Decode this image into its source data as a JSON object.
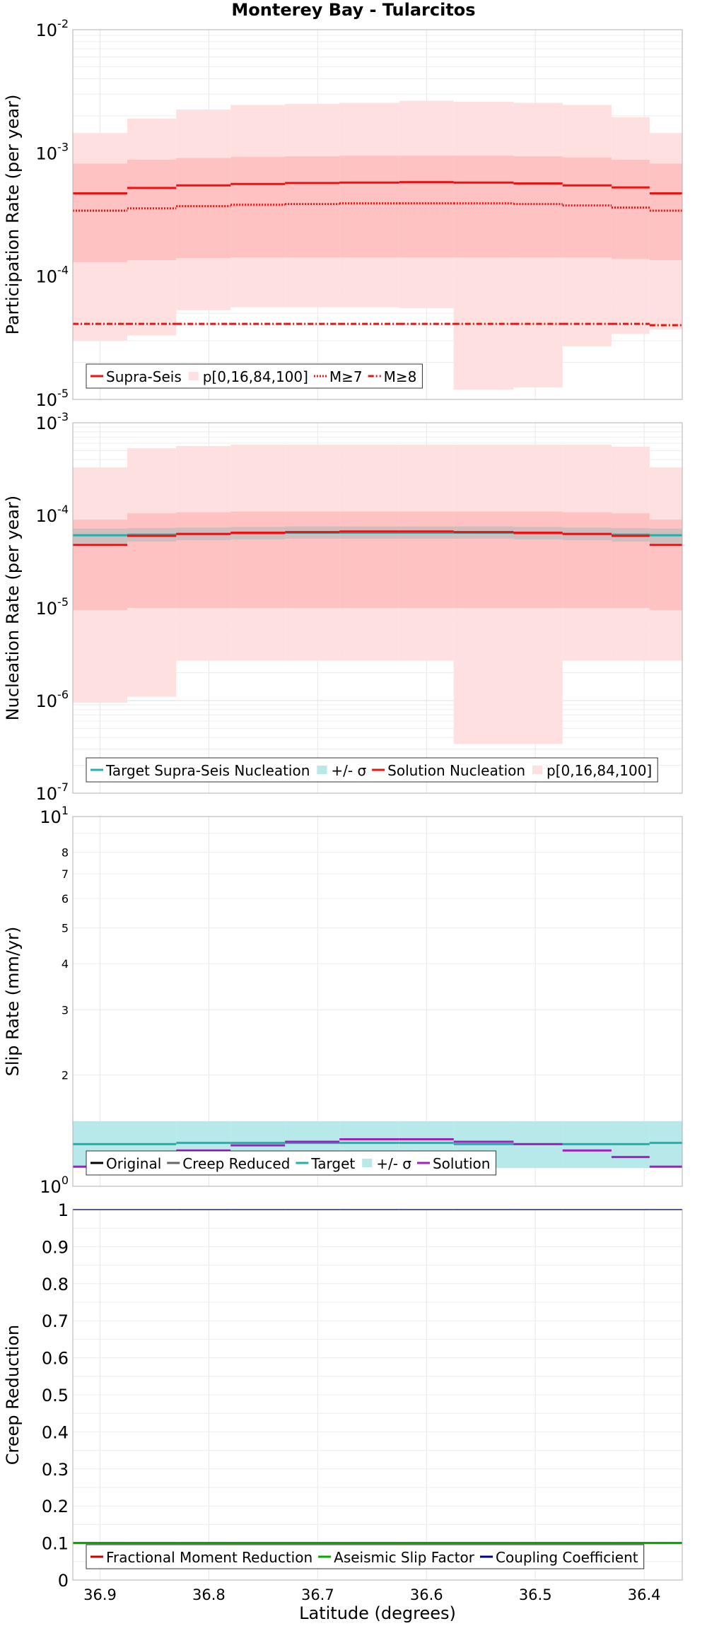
{
  "title": "Monterey Bay - Tularcitos",
  "xlabel": "Latitude (degrees)",
  "x_ticks": [
    36.9,
    36.8,
    36.7,
    36.6,
    36.5,
    36.4
  ],
  "x_tick_labels": [
    "36.9",
    "36.8",
    "36.7",
    "36.6",
    "36.5",
    "36.4"
  ],
  "x_range": [
    36.925,
    36.365
  ],
  "grid": true,
  "segment_edges": [
    36.925,
    36.875,
    36.83,
    36.78,
    36.73,
    36.68,
    36.625,
    36.575,
    36.52,
    36.475,
    36.43,
    36.395,
    36.365
  ],
  "colors": {
    "supra": "#ee1111",
    "band_inner": "#ffc2c2",
    "band_outer": "#ffe0e0",
    "target": "#20b2aa",
    "sigma": "#b7e8ea",
    "creep_reduced": "#666666",
    "original": "#000000",
    "solution_slip": "#a020c0",
    "aseismic": "#00aa00",
    "coupling": "#000080",
    "fractional": "#cc0000"
  },
  "chart_data": [
    {
      "type": "line",
      "ylabel": "Participation Rate (per year)",
      "yscale": "log",
      "ylim": [
        1e-05,
        0.01
      ],
      "y_tick_labels": [
        {
          "value": 1e-05,
          "base": "10",
          "exp": "-5"
        },
        {
          "value": 0.0001,
          "base": "10",
          "exp": "-4"
        },
        {
          "value": 0.001,
          "base": "10",
          "exp": "-3"
        },
        {
          "value": 0.01,
          "base": "10",
          "exp": "-2"
        }
      ],
      "legend": [
        "Supra-Seis",
        "p[0,16,84,100]",
        "M≥7",
        "M≥8"
      ],
      "legend_position": "bottom-left",
      "bands": [
        {
          "name": "p[0,100]",
          "low": [
            3e-05,
            3.3e-05,
            5.3e-05,
            5.6e-05,
            5.6e-05,
            5.6e-05,
            5.5e-05,
            1.2e-05,
            1.25e-05,
            2.7e-05,
            3.4e-05,
            3.7e-05
          ],
          "high": [
            0.00145,
            0.0019,
            0.00225,
            0.00245,
            0.0025,
            0.00255,
            0.00265,
            0.0026,
            0.00255,
            0.00245,
            0.00195,
            0.00145
          ]
        },
        {
          "name": "p[16,84]",
          "low": [
            0.00013,
            0.000135,
            0.00014,
            0.000142,
            0.000142,
            0.000142,
            0.000142,
            0.000142,
            0.000142,
            0.000142,
            0.000138,
            0.000135
          ],
          "high": [
            0.00082,
            0.00088,
            0.00091,
            0.00093,
            0.00094,
            0.00095,
            0.00095,
            0.00095,
            0.00094,
            0.00092,
            0.00088,
            0.00082
          ]
        }
      ],
      "series": [
        {
          "name": "Supra-Seis",
          "style": "solid",
          "values": [
            0.00047,
            0.00052,
            0.000545,
            0.00056,
            0.00057,
            0.000575,
            0.00058,
            0.000575,
            0.000565,
            0.000545,
            0.000525,
            0.00047
          ]
        },
        {
          "name": "M≥7",
          "style": "dotted",
          "values": [
            0.00034,
            0.000355,
            0.00037,
            0.00038,
            0.000385,
            0.00039,
            0.00039,
            0.00039,
            0.000385,
            0.000375,
            0.00036,
            0.00034
          ]
        },
        {
          "name": "M≥8",
          "style": "dashdot",
          "values": [
            4.1e-05,
            4.1e-05,
            4.1e-05,
            4.1e-05,
            4.1e-05,
            4.1e-05,
            4.1e-05,
            4.1e-05,
            4.1e-05,
            4.1e-05,
            4.1e-05,
            4e-05
          ]
        }
      ]
    },
    {
      "type": "line",
      "ylabel": "Nucleation Rate (per year)",
      "yscale": "log",
      "ylim": [
        1e-07,
        0.001
      ],
      "y_tick_labels": [
        {
          "value": 1e-07,
          "base": "10",
          "exp": "-7"
        },
        {
          "value": 1e-06,
          "base": "10",
          "exp": "-6"
        },
        {
          "value": 1e-05,
          "base": "10",
          "exp": "-5"
        },
        {
          "value": 0.0001,
          "base": "10",
          "exp": "-4"
        },
        {
          "value": 0.001,
          "base": "10",
          "exp": "-3"
        }
      ],
      "legend": [
        "Target Supra-Seis Nucleation",
        "+/- σ",
        "Solution Nucleation",
        "p[0,16,84,100]"
      ],
      "legend_position": "bottom-left",
      "bands": [
        {
          "name": "p[0,100]",
          "low": [
            9.5e-07,
            1.1e-06,
            2.7e-06,
            2.7e-06,
            2.7e-06,
            2.7e-06,
            2.7e-06,
            3.4e-07,
            3.4e-07,
            2.7e-06,
            2.7e-06,
            2.7e-06
          ],
          "high": [
            0.00033,
            0.00053,
            0.00056,
            0.00058,
            0.00058,
            0.00058,
            0.00058,
            0.00058,
            0.00058,
            0.00058,
            0.00055,
            0.00033
          ]
        },
        {
          "name": "p[16,84]",
          "low": [
            9.5e-06,
            1e-05,
            1e-05,
            1e-05,
            1e-05,
            1e-05,
            1e-05,
            1e-05,
            1e-05,
            1e-05,
            1e-05,
            9.5e-06
          ],
          "high": [
            9e-05,
            0.000105,
            0.000108,
            0.00011,
            0.00011,
            0.00011,
            0.00011,
            0.00011,
            0.00011,
            0.000108,
            0.000105,
            9e-05
          ]
        },
        {
          "name": "+/- σ",
          "low": [
            5e-05,
            5.2e-05,
            5.4e-05,
            5.5e-05,
            5.6e-05,
            5.6e-05,
            5.6e-05,
            5.6e-05,
            5.5e-05,
            5.4e-05,
            5.2e-05,
            5e-05
          ],
          "high": [
            7.2e-05,
            7.3e-05,
            7.4e-05,
            7.5e-05,
            7.6e-05,
            7.6e-05,
            7.6e-05,
            7.6e-05,
            7.5e-05,
            7.4e-05,
            7.3e-05,
            7.2e-05
          ]
        }
      ],
      "series": [
        {
          "name": "Target Supra-Seis Nucleation",
          "style": "solid",
          "values": [
            6.1e-05,
            6.2e-05,
            6.3e-05,
            6.4e-05,
            6.5e-05,
            6.5e-05,
            6.5e-05,
            6.5e-05,
            6.4e-05,
            6.3e-05,
            6.2e-05,
            6.1e-05
          ]
        },
        {
          "name": "Solution Nucleation",
          "style": "solid",
          "values": [
            4.8e-05,
            6e-05,
            6.3e-05,
            6.5e-05,
            6.6e-05,
            6.7e-05,
            6.7e-05,
            6.6e-05,
            6.5e-05,
            6.3e-05,
            6e-05,
            4.8e-05
          ]
        }
      ]
    },
    {
      "type": "line",
      "ylabel": "Slip Rate (mm/yr)",
      "yscale": "log",
      "ylim": [
        1,
        10
      ],
      "y_tick_labels": [
        {
          "value": 1,
          "base": "10",
          "exp": "0"
        },
        {
          "value": 2,
          "base": "2",
          "exp": ""
        },
        {
          "value": 3,
          "base": "3",
          "exp": ""
        },
        {
          "value": 4,
          "base": "4",
          "exp": ""
        },
        {
          "value": 5,
          "base": "5",
          "exp": ""
        },
        {
          "value": 6,
          "base": "6",
          "exp": ""
        },
        {
          "value": 7,
          "base": "7",
          "exp": ""
        },
        {
          "value": 8,
          "base": "8",
          "exp": ""
        },
        {
          "value": 10,
          "base": "10",
          "exp": "1"
        }
      ],
      "legend": [
        "Original",
        "Creep Reduced",
        "Target",
        "+/- σ",
        "Solution"
      ],
      "legend_position": "bottom-left",
      "bands": [
        {
          "name": "+/- σ",
          "low": [
            1.12,
            1.12,
            1.12,
            1.12,
            1.12,
            1.12,
            1.12,
            1.12,
            1.12,
            1.12,
            1.12,
            1.12
          ],
          "high": [
            1.5,
            1.5,
            1.5,
            1.5,
            1.5,
            1.5,
            1.5,
            1.5,
            1.5,
            1.5,
            1.5,
            1.5
          ]
        }
      ],
      "series": [
        {
          "name": "Target",
          "style": "solid",
          "values": [
            1.3,
            1.3,
            1.31,
            1.31,
            1.31,
            1.31,
            1.31,
            1.3,
            1.3,
            1.3,
            1.3,
            1.31
          ]
        },
        {
          "name": "Solution",
          "style": "solid",
          "values": [
            1.13,
            1.19,
            1.25,
            1.29,
            1.32,
            1.34,
            1.34,
            1.32,
            1.3,
            1.25,
            1.2,
            1.13
          ]
        }
      ]
    },
    {
      "type": "line",
      "ylabel": "Creep Reduction",
      "yscale": "linear",
      "ylim": [
        0,
        1
      ],
      "y_tick_labels": [
        {
          "value": 0,
          "base": "0",
          "exp": ""
        },
        {
          "value": 0.1,
          "base": "0.1",
          "exp": ""
        },
        {
          "value": 0.2,
          "base": "0.2",
          "exp": ""
        },
        {
          "value": 0.3,
          "base": "0.3",
          "exp": ""
        },
        {
          "value": 0.4,
          "base": "0.4",
          "exp": ""
        },
        {
          "value": 0.5,
          "base": "0.5",
          "exp": ""
        },
        {
          "value": 0.6,
          "base": "0.6",
          "exp": ""
        },
        {
          "value": 0.7,
          "base": "0.7",
          "exp": ""
        },
        {
          "value": 0.8,
          "base": "0.8",
          "exp": ""
        },
        {
          "value": 0.9,
          "base": "0.9",
          "exp": ""
        },
        {
          "value": 1,
          "base": "1",
          "exp": ""
        }
      ],
      "legend": [
        "Fractional Moment Reduction",
        "Aseismic Slip Factor",
        "Coupling Coefficient"
      ],
      "legend_position": "bottom-left",
      "bands": [],
      "series": [
        {
          "name": "Fractional Moment Reduction",
          "style": "solid",
          "values": [
            0.1,
            0.1,
            0.1,
            0.1,
            0.1,
            0.1,
            0.1,
            0.1,
            0.1,
            0.1,
            0.1,
            0.1
          ]
        },
        {
          "name": "Aseismic Slip Factor",
          "style": "solid",
          "values": [
            0.1,
            0.1,
            0.1,
            0.1,
            0.1,
            0.1,
            0.1,
            0.1,
            0.1,
            0.1,
            0.1,
            0.1
          ]
        },
        {
          "name": "Coupling Coefficient",
          "style": "solid",
          "values": [
            1,
            1,
            1,
            1,
            1,
            1,
            1,
            1,
            1,
            1,
            1,
            1
          ]
        }
      ]
    }
  ]
}
